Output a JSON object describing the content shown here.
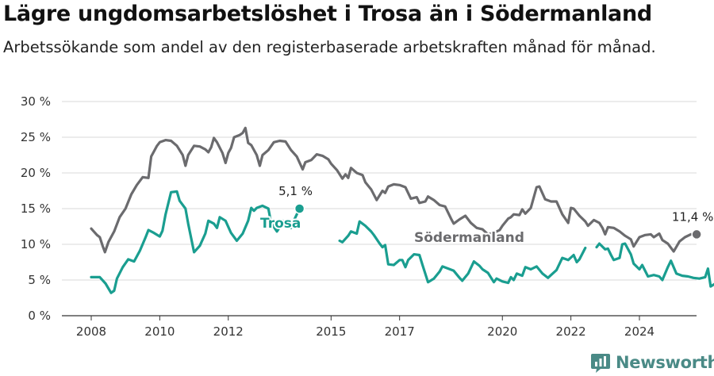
{
  "title": "Lägre ungdomsarbetslöshet i Trosa än i Södermanland",
  "subtitle": "Arbetssökande som andel av den registerbaserade arbetskraften månad för månad.",
  "logo": {
    "text": "Newsworthy",
    "icon": "newsworthy-logo-icon",
    "color": "#4a8a86"
  },
  "chart_data": {
    "type": "line",
    "title": "Lägre ungdomsarbetslöshet i Trosa än i Södermanland",
    "xlabel": "",
    "ylabel": "",
    "xlim": [
      2007.7,
      2025.5
    ],
    "ylim": [
      0,
      30
    ],
    "y_ticks": [
      0,
      5,
      10,
      15,
      20,
      25,
      30
    ],
    "y_tick_labels": [
      "0 %",
      "5 %",
      "10 %",
      "15 %",
      "20 %",
      "25 %",
      "30 %"
    ],
    "x_ticks": [
      2008,
      2010,
      2012,
      2015,
      2017,
      2020,
      2022,
      2024
    ],
    "x_tick_labels": [
      "2008",
      "2010",
      "2012",
      "2015",
      "2017",
      "2020",
      "2022",
      "2024"
    ],
    "grid": "horizontal",
    "series": [
      {
        "name": "Södermanland",
        "color": "#6b6b6e",
        "end_label": "11,4 %",
        "points": [
          [
            2008.0,
            12.2
          ],
          [
            2008.17,
            11.3
          ],
          [
            2008.25,
            11.0
          ],
          [
            2008.33,
            9.8
          ],
          [
            2008.4,
            8.9
          ],
          [
            2008.5,
            10.3
          ],
          [
            2008.67,
            11.8
          ],
          [
            2008.83,
            13.8
          ],
          [
            2009.0,
            15.0
          ],
          [
            2009.17,
            17.0
          ],
          [
            2009.33,
            18.3
          ],
          [
            2009.5,
            19.4
          ],
          [
            2009.67,
            19.3
          ],
          [
            2009.75,
            22.3
          ],
          [
            2009.83,
            23.0
          ],
          [
            2009.92,
            23.8
          ],
          [
            2010.0,
            24.3
          ],
          [
            2010.17,
            24.6
          ],
          [
            2010.33,
            24.5
          ],
          [
            2010.5,
            23.8
          ],
          [
            2010.67,
            22.5
          ],
          [
            2010.75,
            21.0
          ],
          [
            2010.83,
            22.5
          ],
          [
            2011.0,
            23.8
          ],
          [
            2011.17,
            23.7
          ],
          [
            2011.33,
            23.3
          ],
          [
            2011.42,
            22.9
          ],
          [
            2011.5,
            23.6
          ],
          [
            2011.58,
            24.9
          ],
          [
            2011.67,
            24.3
          ],
          [
            2011.83,
            22.8
          ],
          [
            2011.92,
            21.4
          ],
          [
            2012.0,
            22.8
          ],
          [
            2012.08,
            23.5
          ],
          [
            2012.17,
            25.0
          ],
          [
            2012.33,
            25.3
          ],
          [
            2012.42,
            25.6
          ],
          [
            2012.5,
            26.3
          ],
          [
            2012.58,
            24.2
          ],
          [
            2012.67,
            23.9
          ],
          [
            2012.83,
            22.5
          ],
          [
            2012.92,
            21.0
          ],
          [
            2013.0,
            22.5
          ],
          [
            2013.17,
            23.2
          ],
          [
            2013.33,
            24.3
          ],
          [
            2013.5,
            24.5
          ],
          [
            2013.67,
            24.4
          ],
          [
            2013.83,
            23.2
          ],
          [
            2014.0,
            22.3
          ],
          [
            2014.17,
            20.5
          ],
          [
            2014.25,
            21.5
          ],
          [
            2014.42,
            21.8
          ],
          [
            2014.58,
            22.6
          ],
          [
            2014.75,
            22.4
          ],
          [
            2014.92,
            21.9
          ],
          [
            2015.0,
            21.3
          ],
          [
            2015.17,
            20.4
          ],
          [
            2015.33,
            19.2
          ],
          [
            2015.42,
            19.8
          ],
          [
            2015.5,
            19.3
          ],
          [
            2015.58,
            20.7
          ],
          [
            2015.75,
            20.0
          ],
          [
            2015.92,
            19.7
          ],
          [
            2016.0,
            18.7
          ],
          [
            2016.17,
            17.7
          ],
          [
            2016.33,
            16.2
          ],
          [
            2016.5,
            17.5
          ],
          [
            2016.58,
            17.2
          ],
          [
            2016.67,
            18.1
          ],
          [
            2016.83,
            18.4
          ],
          [
            2017.0,
            18.3
          ],
          [
            2017.17,
            18.0
          ],
          [
            2017.33,
            16.4
          ],
          [
            2017.5,
            16.6
          ],
          [
            2017.58,
            15.8
          ],
          [
            2017.75,
            16.0
          ],
          [
            2017.83,
            16.7
          ],
          [
            2018.0,
            16.2
          ],
          [
            2018.17,
            15.5
          ],
          [
            2018.33,
            15.3
          ],
          [
            2018.5,
            13.6
          ],
          [
            2018.58,
            12.9
          ],
          [
            2018.75,
            13.5
          ],
          [
            2018.92,
            14.0
          ],
          [
            2019.08,
            13.0
          ],
          [
            2019.25,
            12.3
          ],
          [
            2019.42,
            12.1
          ],
          [
            2019.58,
            11.4
          ],
          [
            2019.75,
            11.6
          ],
          [
            2019.92,
            12.0
          ],
          [
            2020.0,
            12.6
          ],
          [
            2020.17,
            13.6
          ],
          [
            2020.25,
            13.8
          ],
          [
            2020.33,
            14.2
          ],
          [
            2020.5,
            14.1
          ],
          [
            2020.58,
            14.9
          ],
          [
            2020.67,
            14.3
          ],
          [
            2020.83,
            15.1
          ],
          [
            2021.0,
            18.0
          ],
          [
            2021.08,
            18.1
          ],
          [
            2021.25,
            16.3
          ],
          [
            2021.42,
            16.0
          ],
          [
            2021.58,
            16.0
          ],
          [
            2021.75,
            14.2
          ],
          [
            2021.92,
            13.0
          ],
          [
            2022.0,
            15.1
          ],
          [
            2022.08,
            15.0
          ],
          [
            2022.25,
            14.0
          ],
          [
            2022.42,
            13.2
          ],
          [
            2022.5,
            12.6
          ],
          [
            2022.67,
            13.4
          ],
          [
            2022.83,
            13.0
          ],
          [
            2022.92,
            12.3
          ],
          [
            2023.0,
            11.4
          ],
          [
            2023.08,
            12.4
          ],
          [
            2023.25,
            12.3
          ],
          [
            2023.42,
            11.8
          ],
          [
            2023.58,
            11.2
          ],
          [
            2023.75,
            10.7
          ],
          [
            2023.83,
            9.7
          ],
          [
            2024.0,
            11.0
          ],
          [
            2024.17,
            11.3
          ],
          [
            2024.33,
            11.4
          ],
          [
            2024.42,
            11.0
          ],
          [
            2024.58,
            11.5
          ],
          [
            2024.67,
            10.6
          ],
          [
            2024.83,
            10.1
          ],
          [
            2025.0,
            9.0
          ],
          [
            2025.17,
            10.4
          ],
          [
            2025.33,
            11.0
          ],
          [
            2025.5,
            11.4
          ],
          [
            2025.67,
            11.4
          ]
        ]
      },
      {
        "name": "Trosa",
        "color": "#1a9e90",
        "end_label": "5,1 %",
        "points": [
          [
            2008.0,
            5.4
          ],
          [
            2008.17,
            5.4
          ],
          [
            2008.25,
            5.4
          ],
          [
            2008.42,
            4.5
          ],
          [
            2008.58,
            3.2
          ],
          [
            2008.67,
            3.5
          ],
          [
            2008.75,
            5.2
          ],
          [
            2008.92,
            6.8
          ],
          [
            2009.08,
            7.9
          ],
          [
            2009.25,
            7.6
          ],
          [
            2009.42,
            9.1
          ],
          [
            2009.58,
            10.9
          ],
          [
            2009.67,
            12.0
          ],
          [
            2009.83,
            11.6
          ],
          [
            2010.0,
            11.1
          ],
          [
            2010.08,
            11.9
          ],
          [
            2010.17,
            14.2
          ],
          [
            2010.33,
            17.3
          ],
          [
            2010.5,
            17.4
          ],
          [
            2010.58,
            16.1
          ],
          [
            2010.75,
            15.0
          ],
          [
            2010.83,
            12.9
          ],
          [
            2011.0,
            8.9
          ],
          [
            2011.17,
            9.8
          ],
          [
            2011.33,
            11.5
          ],
          [
            2011.42,
            13.3
          ],
          [
            2011.58,
            12.9
          ],
          [
            2011.67,
            12.3
          ],
          [
            2011.75,
            13.8
          ],
          [
            2011.92,
            13.3
          ],
          [
            2012.08,
            11.6
          ],
          [
            2012.25,
            10.5
          ],
          [
            2012.42,
            11.5
          ],
          [
            2012.58,
            13.3
          ],
          [
            2012.67,
            15.1
          ],
          [
            2012.75,
            14.7
          ],
          [
            2012.83,
            15.1
          ],
          [
            2013.0,
            15.4
          ],
          [
            2013.17,
            15.0
          ],
          [
            2013.25,
            13.0
          ],
          [
            2013.42,
            11.8
          ],
          [
            2013.5,
            12.4
          ],
          [
            2013.58,
            13.3
          ],
          [
            2013.75,
            13.0
          ],
          [
            2013.83,
            12.3
          ],
          [
            2013.92,
            13.4
          ],
          [
            2014.08,
            15.0
          ]
        ]
      },
      {
        "name": "Trosa",
        "color": "#1a9e90",
        "points": [
          [
            2015.25,
            10.5
          ],
          [
            2015.33,
            10.3
          ],
          [
            2015.5,
            11.2
          ],
          [
            2015.58,
            11.8
          ],
          [
            2015.75,
            11.5
          ],
          [
            2015.83,
            13.2
          ],
          [
            2016.0,
            12.6
          ],
          [
            2016.17,
            11.8
          ],
          [
            2016.25,
            11.3
          ],
          [
            2016.42,
            10.1
          ],
          [
            2016.5,
            9.6
          ],
          [
            2016.58,
            9.9
          ],
          [
            2016.67,
            7.2
          ],
          [
            2016.83,
            7.1
          ],
          [
            2017.0,
            7.8
          ],
          [
            2017.08,
            7.8
          ],
          [
            2017.17,
            6.8
          ],
          [
            2017.25,
            7.8
          ],
          [
            2017.42,
            8.6
          ],
          [
            2017.58,
            8.5
          ],
          [
            2017.67,
            7.1
          ],
          [
            2017.83,
            4.7
          ],
          [
            2018.0,
            5.2
          ],
          [
            2018.17,
            6.2
          ],
          [
            2018.25,
            6.9
          ],
          [
            2018.42,
            6.6
          ],
          [
            2018.58,
            6.3
          ],
          [
            2018.75,
            5.3
          ],
          [
            2018.83,
            4.9
          ],
          [
            2019.0,
            5.9
          ],
          [
            2019.17,
            7.6
          ],
          [
            2019.33,
            7.0
          ],
          [
            2019.42,
            6.5
          ],
          [
            2019.58,
            6.0
          ],
          [
            2019.75,
            4.7
          ],
          [
            2019.83,
            5.2
          ],
          [
            2020.0,
            4.8
          ],
          [
            2020.17,
            4.6
          ],
          [
            2020.25,
            5.4
          ],
          [
            2020.33,
            5.0
          ],
          [
            2020.42,
            5.9
          ],
          [
            2020.58,
            5.6
          ],
          [
            2020.67,
            6.8
          ],
          [
            2020.83,
            6.5
          ],
          [
            2021.0,
            6.9
          ],
          [
            2021.17,
            5.9
          ],
          [
            2021.33,
            5.3
          ],
          [
            2021.42,
            5.7
          ],
          [
            2021.58,
            6.4
          ],
          [
            2021.75,
            8.1
          ],
          [
            2021.92,
            7.8
          ],
          [
            2022.08,
            8.5
          ],
          [
            2022.17,
            7.5
          ],
          [
            2022.25,
            7.9
          ],
          [
            2022.42,
            9.5
          ]
        ]
      },
      {
        "name": "Trosa",
        "color": "#1a9e90",
        "points": [
          [
            2022.75,
            9.6
          ],
          [
            2022.83,
            10.1
          ],
          [
            2023.0,
            9.3
          ],
          [
            2023.08,
            9.4
          ],
          [
            2023.17,
            8.5
          ],
          [
            2023.25,
            7.8
          ],
          [
            2023.42,
            8.1
          ],
          [
            2023.5,
            10.0
          ],
          [
            2023.58,
            10.1
          ],
          [
            2023.75,
            8.6
          ],
          [
            2023.83,
            7.3
          ],
          [
            2024.0,
            6.5
          ],
          [
            2024.08,
            7.1
          ],
          [
            2024.25,
            5.5
          ],
          [
            2024.42,
            5.7
          ],
          [
            2024.58,
            5.5
          ],
          [
            2024.67,
            5.0
          ],
          [
            2024.83,
            6.8
          ],
          [
            2024.92,
            7.7
          ],
          [
            2025.08,
            5.9
          ],
          [
            2025.25,
            5.6
          ],
          [
            2025.42,
            5.5
          ],
          [
            2025.58,
            5.3
          ],
          [
            2025.75,
            5.2
          ],
          [
            2025.92,
            5.4
          ],
          [
            2026.0,
            6.6
          ],
          [
            2026.08,
            4.1
          ],
          [
            2026.25,
            4.6
          ],
          [
            2026.42,
            5.8
          ],
          [
            2026.5,
            4.8
          ],
          [
            2026.67,
            5.1
          ]
        ]
      }
    ],
    "annotations": [
      {
        "text": "Trosa",
        "series": "Trosa",
        "color": "#1a9e90"
      },
      {
        "text": "Södermanland",
        "series": "Södermanland",
        "color": "#6b6b6e"
      }
    ]
  }
}
